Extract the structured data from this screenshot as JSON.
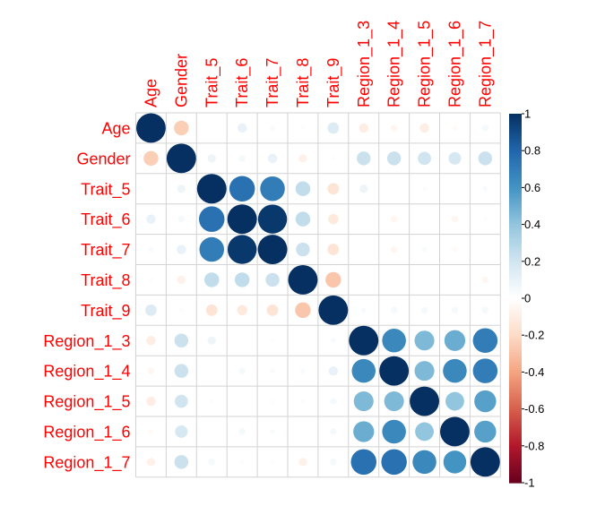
{
  "chart_data": {
    "type": "heatmap",
    "title": "",
    "variables": [
      "Age",
      "Gender",
      "Trait_5",
      "Trait_6",
      "Trait_7",
      "Trait_8",
      "Trait_9",
      "Region_1_3",
      "Region_1_4",
      "Region_1_5",
      "Region_1_6",
      "Region_1_7"
    ],
    "matrix": [
      [
        1.0,
        -0.25,
        0.0,
        0.1,
        0.03,
        0.02,
        0.15,
        -0.1,
        -0.05,
        -0.1,
        -0.03,
        0.05
      ],
      [
        -0.25,
        1.0,
        0.08,
        0.05,
        0.1,
        -0.08,
        -0.02,
        0.22,
        0.22,
        0.2,
        0.18,
        0.22
      ],
      [
        0.0,
        0.08,
        1.0,
        0.75,
        0.7,
        0.25,
        -0.15,
        0.08,
        0.0,
        0.02,
        0.0,
        0.03
      ],
      [
        0.1,
        0.05,
        0.75,
        1.0,
        0.97,
        0.25,
        -0.12,
        0.0,
        -0.05,
        0.0,
        -0.05,
        0.02
      ],
      [
        0.03,
        0.1,
        0.7,
        0.97,
        1.0,
        0.22,
        -0.15,
        0.0,
        -0.05,
        0.03,
        -0.03,
        0.0
      ],
      [
        0.02,
        -0.08,
        0.25,
        0.25,
        0.22,
        1.0,
        -0.28,
        0.0,
        0.0,
        0.0,
        0.0,
        -0.05
      ],
      [
        0.15,
        -0.02,
        -0.15,
        -0.12,
        -0.15,
        -0.28,
        1.0,
        0.03,
        0.05,
        0.05,
        0.05,
        0.05
      ],
      [
        -0.1,
        0.22,
        0.08,
        0.0,
        0.02,
        0.0,
        0.03,
        1.0,
        0.65,
        0.45,
        0.5,
        0.7
      ],
      [
        -0.05,
        0.22,
        0.0,
        0.05,
        0.03,
        0.03,
        0.1,
        0.65,
        1.0,
        0.45,
        0.65,
        0.7
      ],
      [
        -0.1,
        0.2,
        0.02,
        0.0,
        0.02,
        0.02,
        0.05,
        0.45,
        0.45,
        1.0,
        0.4,
        0.55
      ],
      [
        -0.03,
        0.18,
        0.0,
        0.05,
        0.03,
        0.0,
        0.05,
        0.5,
        0.65,
        0.4,
        1.0,
        0.55
      ],
      [
        -0.08,
        0.22,
        0.05,
        0.02,
        0.02,
        -0.08,
        0.05,
        0.75,
        0.75,
        0.65,
        0.6,
        1.0
      ]
    ],
    "color_scale": {
      "range": [
        -1,
        1
      ],
      "ticks": [
        "1",
        "0.8",
        "0.6",
        "0.4",
        "0.2",
        "0",
        "-0.2",
        "-0.4",
        "-0.6",
        "-0.8",
        "-1"
      ],
      "tick_values": [
        1,
        0.8,
        0.6,
        0.4,
        0.2,
        0,
        -0.2,
        -0.4,
        -0.6,
        -0.8,
        -1
      ],
      "colors": [
        "#67001F",
        "#B2182B",
        "#D6604D",
        "#F4A582",
        "#FDDBC7",
        "#FFFFFF",
        "#D1E5F0",
        "#92C5DE",
        "#4393C3",
        "#2166AC",
        "#053061"
      ]
    },
    "label_color": "#FF0000",
    "grid_color": "#D3D3D3",
    "legend_position": "right",
    "grid": true
  }
}
